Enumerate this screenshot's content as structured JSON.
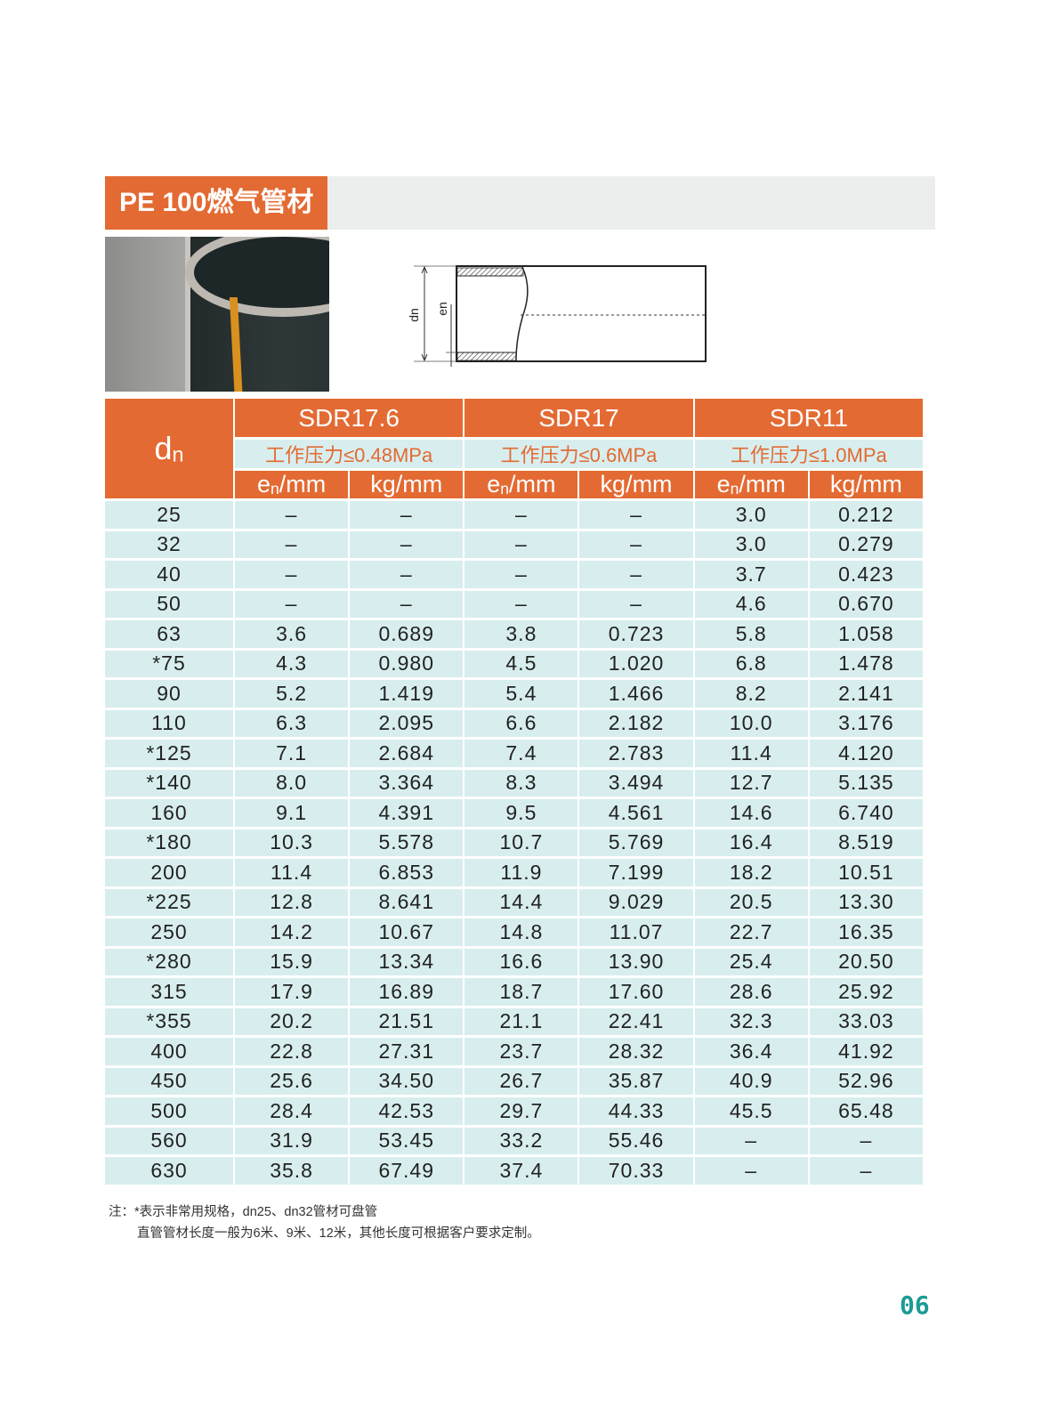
{
  "title": "PE 100燃气管材",
  "diagram": {
    "dn_label": "dn",
    "en_label": "en"
  },
  "table": {
    "dn_header": "dn",
    "groups": [
      {
        "sdr": "SDR17.6",
        "pressure": "工作压力≤0.48MPa",
        "col1": "en/mm",
        "col2": "kg/mm"
      },
      {
        "sdr": "SDR17",
        "pressure": "工作压力≤0.6MPa",
        "col1": "en/mm",
        "col2": "kg/mm"
      },
      {
        "sdr": "SDR11",
        "pressure": "工作压力≤1.0MPa",
        "col1": "en/mm",
        "col2": "kg/mm"
      }
    ],
    "rows": [
      [
        "25",
        "–",
        "–",
        "–",
        "–",
        "3.0",
        "0.212"
      ],
      [
        "32",
        "–",
        "–",
        "–",
        "–",
        "3.0",
        "0.279"
      ],
      [
        "40",
        "–",
        "–",
        "–",
        "–",
        "3.7",
        "0.423"
      ],
      [
        "50",
        "–",
        "–",
        "–",
        "–",
        "4.6",
        "0.670"
      ],
      [
        "63",
        "3.6",
        "0.689",
        "3.8",
        "0.723",
        "5.8",
        "1.058"
      ],
      [
        "*75",
        "4.3",
        "0.980",
        "4.5",
        "1.020",
        "6.8",
        "1.478"
      ],
      [
        "90",
        "5.2",
        "1.419",
        "5.4",
        "1.466",
        "8.2",
        "2.141"
      ],
      [
        "110",
        "6.3",
        "2.095",
        "6.6",
        "2.182",
        "10.0",
        "3.176"
      ],
      [
        "*125",
        "7.1",
        "2.684",
        "7.4",
        "2.783",
        "11.4",
        "4.120"
      ],
      [
        "*140",
        "8.0",
        "3.364",
        "8.3",
        "3.494",
        "12.7",
        "5.135"
      ],
      [
        "160",
        "9.1",
        "4.391",
        "9.5",
        "4.561",
        "14.6",
        "6.740"
      ],
      [
        "*180",
        "10.3",
        "5.578",
        "10.7",
        "5.769",
        "16.4",
        "8.519"
      ],
      [
        "200",
        "11.4",
        "6.853",
        "11.9",
        "7.199",
        "18.2",
        "10.51"
      ],
      [
        "*225",
        "12.8",
        "8.641",
        "14.4",
        "9.029",
        "20.5",
        "13.30"
      ],
      [
        "250",
        "14.2",
        "10.67",
        "14.8",
        "11.07",
        "22.7",
        "16.35"
      ],
      [
        "*280",
        "15.9",
        "13.34",
        "16.6",
        "13.90",
        "25.4",
        "20.50"
      ],
      [
        "315",
        "17.9",
        "16.89",
        "18.7",
        "17.60",
        "28.6",
        "25.92"
      ],
      [
        "*355",
        "20.2",
        "21.51",
        "21.1",
        "22.41",
        "32.3",
        "33.03"
      ],
      [
        "400",
        "22.8",
        "27.31",
        "23.7",
        "28.32",
        "36.4",
        "41.92"
      ],
      [
        "450",
        "25.6",
        "34.50",
        "26.7",
        "35.87",
        "40.9",
        "52.96"
      ],
      [
        "500",
        "28.4",
        "42.53",
        "29.7",
        "44.33",
        "45.5",
        "65.48"
      ],
      [
        "560",
        "31.9",
        "53.45",
        "33.2",
        "55.46",
        "–",
        "–"
      ],
      [
        "630",
        "35.8",
        "67.49",
        "37.4",
        "70.33",
        "–",
        "–"
      ]
    ]
  },
  "notes": [
    "注：*表示非常用规格，dn25、dn32管材可盘管",
    "直管管材长度一般为6米、9米、12米，其他长度可根据客户要求定制。"
  ],
  "page_number": "06",
  "colors": {
    "accent": "#e36a32",
    "table_bg": "#d8eeee",
    "page_number": "#1a9a96"
  }
}
